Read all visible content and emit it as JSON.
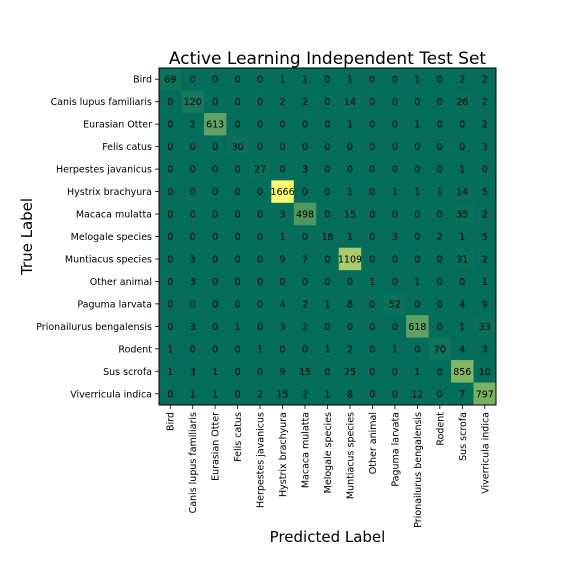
{
  "chart_data": {
    "type": "heatmap",
    "title": "Active Learning Independent Test Set",
    "xlabel": "Predicted Label",
    "ylabel": "True Label",
    "labels": [
      "Bird",
      "Canis lupus familiaris",
      "Eurasian Otter",
      "Felis catus",
      "Herpestes javanicus",
      "Hystrix brachyura",
      "Macaca mulatta",
      "Melogale species",
      "Muntiacus species",
      "Other animal",
      "Paguma larvata",
      "Prionailurus bengalensis",
      "Rodent",
      "Sus scrofa",
      "Viverricula indica"
    ],
    "matrix": [
      [
        69,
        0,
        0,
        0,
        0,
        1,
        1,
        0,
        1,
        0,
        0,
        1,
        0,
        2,
        2
      ],
      [
        0,
        120,
        0,
        0,
        0,
        2,
        2,
        0,
        14,
        0,
        0,
        0,
        0,
        26,
        2
      ],
      [
        0,
        2,
        613,
        0,
        0,
        0,
        0,
        0,
        1,
        0,
        0,
        1,
        0,
        0,
        2
      ],
      [
        0,
        0,
        0,
        30,
        0,
        0,
        0,
        0,
        0,
        0,
        0,
        0,
        0,
        0,
        3
      ],
      [
        0,
        0,
        0,
        0,
        27,
        0,
        3,
        0,
        0,
        0,
        0,
        0,
        0,
        1,
        0
      ],
      [
        0,
        0,
        0,
        0,
        0,
        1666,
        0,
        0,
        1,
        0,
        1,
        1,
        1,
        14,
        5
      ],
      [
        0,
        0,
        0,
        0,
        0,
        3,
        498,
        0,
        15,
        0,
        0,
        0,
        0,
        35,
        2
      ],
      [
        0,
        0,
        0,
        0,
        0,
        1,
        0,
        18,
        1,
        0,
        3,
        0,
        2,
        1,
        5
      ],
      [
        0,
        3,
        0,
        0,
        0,
        9,
        7,
        0,
        1109,
        0,
        0,
        0,
        0,
        31,
        2
      ],
      [
        0,
        3,
        0,
        0,
        0,
        0,
        0,
        0,
        0,
        1,
        0,
        1,
        0,
        0,
        1
      ],
      [
        0,
        0,
        0,
        0,
        0,
        4,
        2,
        1,
        8,
        0,
        52,
        0,
        0,
        4,
        9
      ],
      [
        0,
        3,
        0,
        1,
        0,
        3,
        2,
        0,
        0,
        0,
        0,
        618,
        0,
        1,
        33
      ],
      [
        1,
        0,
        0,
        0,
        1,
        0,
        0,
        1,
        2,
        0,
        1,
        0,
        70,
        4,
        3
      ],
      [
        1,
        3,
        1,
        0,
        0,
        9,
        15,
        0,
        25,
        0,
        0,
        1,
        0,
        856,
        10
      ],
      [
        0,
        1,
        1,
        0,
        2,
        15,
        2,
        1,
        8,
        0,
        0,
        12,
        0,
        7,
        797
      ]
    ],
    "colormap": {
      "low": "#046d5b",
      "high": "#fafa6e"
    },
    "grid": false
  }
}
